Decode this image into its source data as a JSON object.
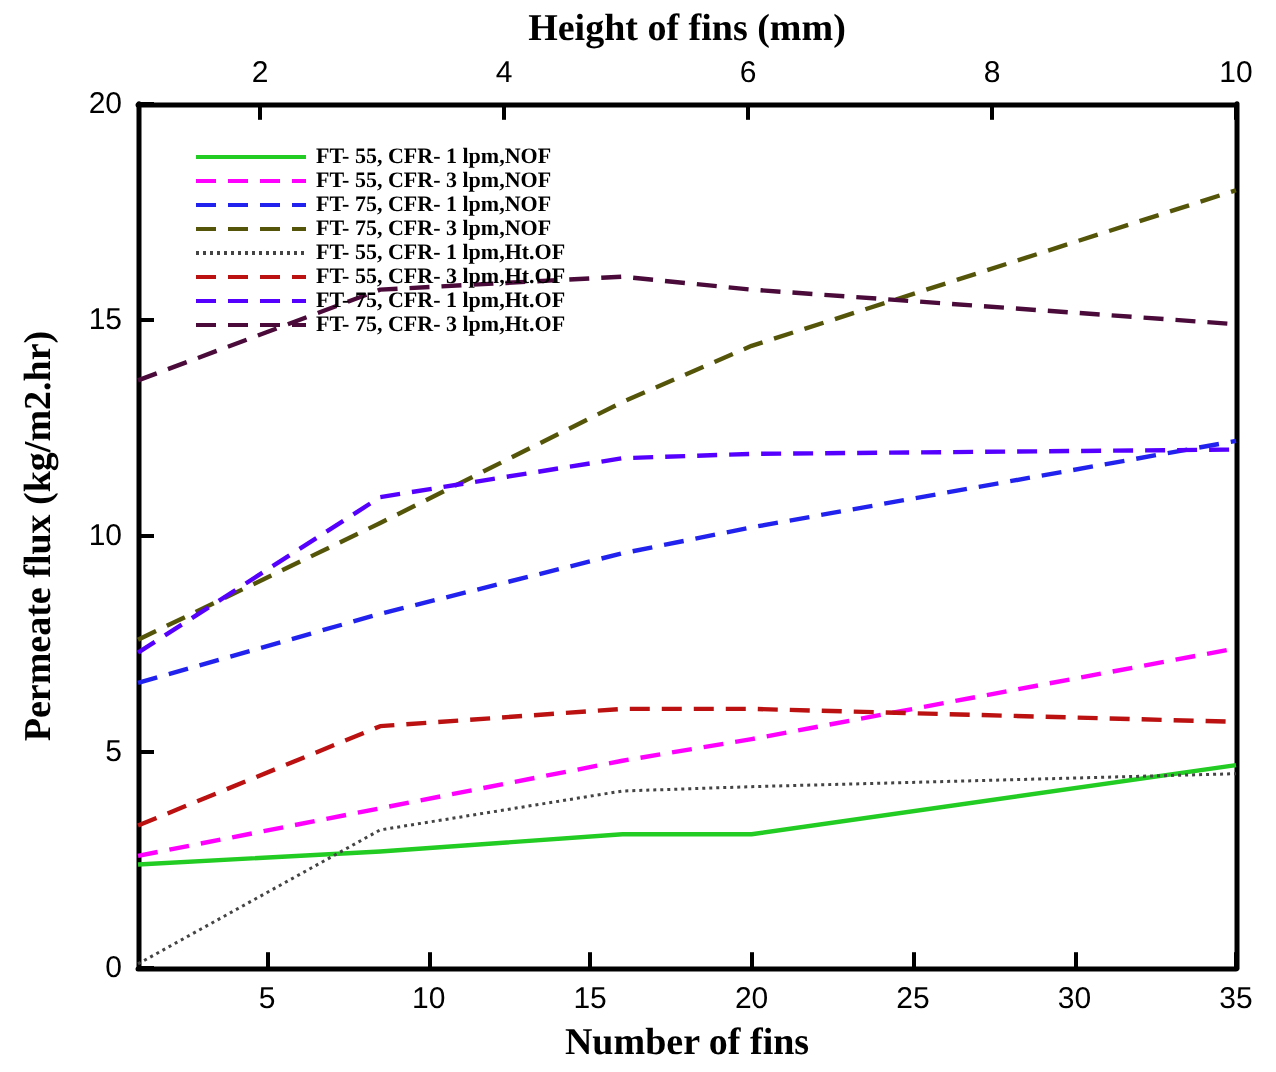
{
  "chart_data": {
    "type": "line",
    "xlabel": "Number of fins",
    "ylabel": "Permeate flux (kg/m2.hr)",
    "x2label": "Height of fins (mm)",
    "x": [
      1,
      8.5,
      16,
      20,
      35
    ],
    "xlim": [
      1,
      35
    ],
    "xticks": [
      5,
      10,
      15,
      20,
      25,
      30,
      35
    ],
    "x2lim": [
      1,
      10
    ],
    "x2ticks": [
      2,
      4,
      6,
      8,
      10
    ],
    "ylim": [
      0,
      20
    ],
    "yticks": [
      0,
      5,
      10,
      15,
      20
    ],
    "grid": false,
    "legend": "top left",
    "marker": "none",
    "series": [
      {
        "name": "FT- 55, CFR- 1 lpm,NOF",
        "color": "#22cc22",
        "line_style": "solid",
        "values": [
          2.4,
          2.7,
          3.1,
          3.1,
          4.7
        ]
      },
      {
        "name": "FT- 55, CFR- 3 lpm,NOF",
        "color": "#ff00ff",
        "line_style": "dashed",
        "values": [
          2.6,
          3.7,
          4.8,
          5.3,
          7.4
        ]
      },
      {
        "name": "FT- 75, CFR- 1 lpm,NOF",
        "color": "#2222ee",
        "line_style": "dashed",
        "values": [
          6.6,
          8.2,
          9.6,
          10.2,
          12.2
        ]
      },
      {
        "name": "FT- 75, CFR- 3 lpm,NOF",
        "color": "#55550a",
        "line_style": "dashed",
        "values": [
          7.6,
          10.3,
          13.1,
          14.4,
          18.0
        ]
      },
      {
        "name": "FT- 55, CFR- 1 lpm,Ht.OF",
        "color": "#444444",
        "line_style": "dotted",
        "values": [
          0.1,
          3.2,
          4.1,
          4.2,
          4.5
        ]
      },
      {
        "name": "FT- 55, CFR- 3 lpm,Ht.OF",
        "color": "#bb1111",
        "line_style": "dashed",
        "values": [
          3.3,
          5.6,
          6.0,
          6.0,
          5.7
        ]
      },
      {
        "name": "FT- 75, CFR- 1 lpm,Ht.OF",
        "color": "#5500ff",
        "line_style": "dashed",
        "values": [
          7.3,
          10.9,
          11.8,
          11.9,
          12.0
        ]
      },
      {
        "name": "FT- 75, CFR- 3 lpm,Ht.OF",
        "color": "#4a0a3a",
        "line_style": "dashed",
        "values": [
          13.6,
          15.7,
          16.0,
          15.7,
          14.9
        ]
      }
    ]
  }
}
